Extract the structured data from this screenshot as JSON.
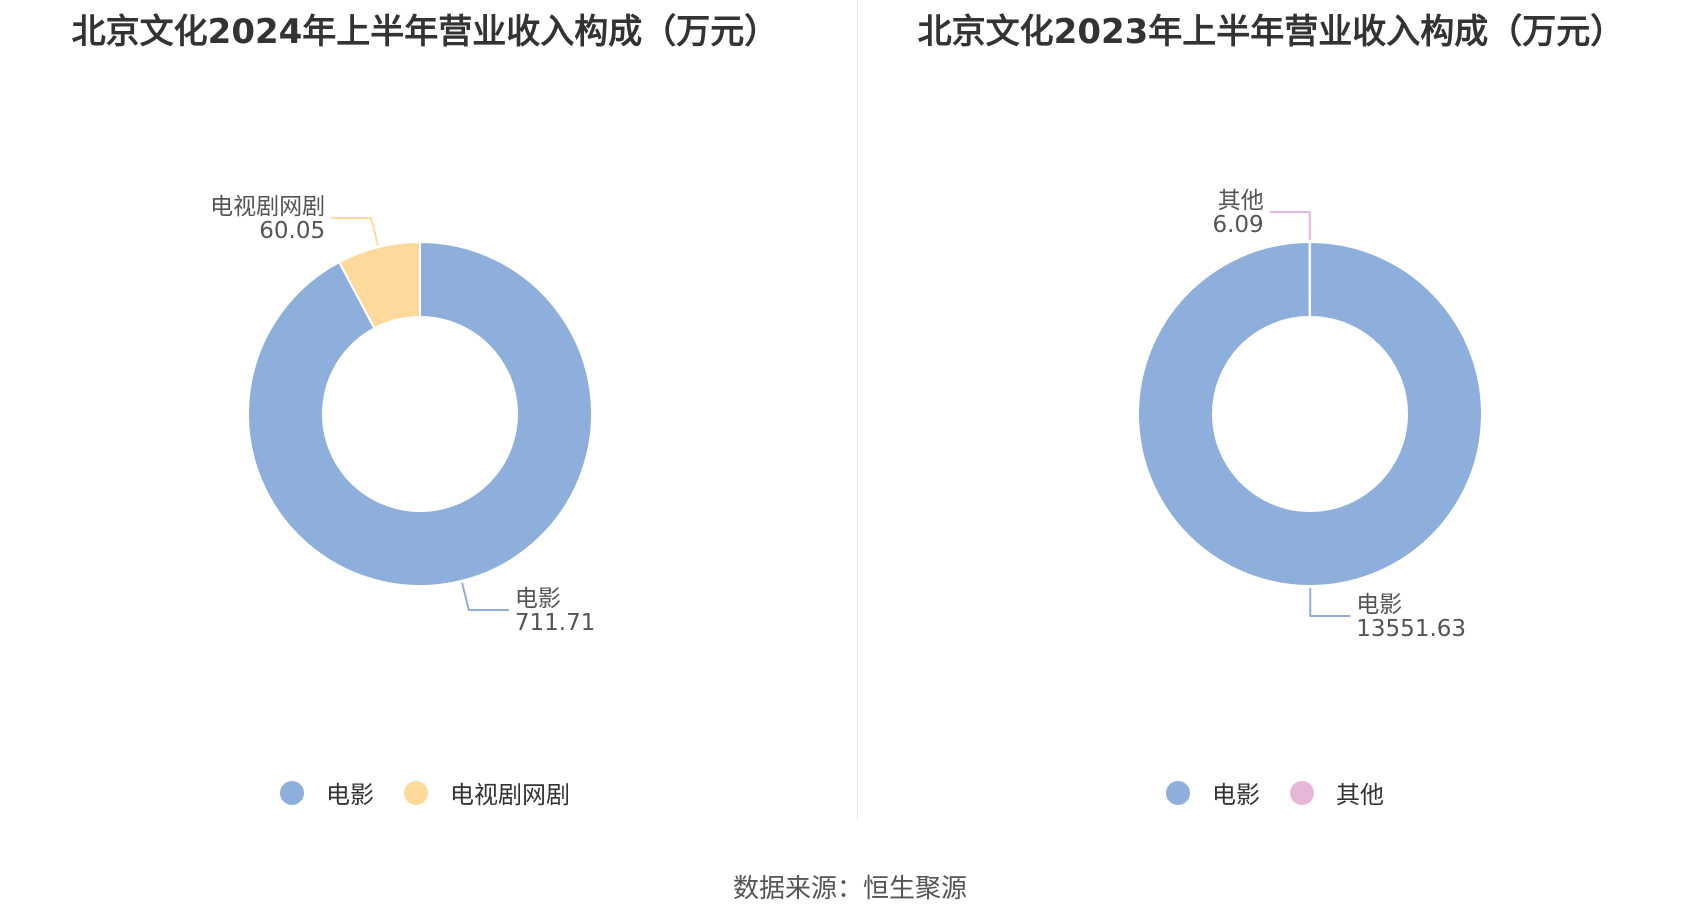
{
  "chart_data": [
    {
      "type": "pie",
      "title": "北京文化2024年上半年营业收入构成（万元）",
      "series": [
        {
          "name": "电影",
          "value": 711.71,
          "display": "711.71",
          "color": "#8eaedb"
        },
        {
          "name": "电视剧网剧",
          "value": 60.05,
          "display": "60.05",
          "color": "#fdd99b"
        }
      ],
      "legend": {
        "position": "bottom"
      }
    },
    {
      "type": "pie",
      "title": "北京文化2023年上半年营业收入构成（万元）",
      "series": [
        {
          "name": "电影",
          "value": 13551.63,
          "display": "13551.63",
          "color": "#8eaedb"
        },
        {
          "name": "其他",
          "value": 6.09,
          "display": "6.09",
          "color": "#e8b6d6"
        }
      ],
      "legend": {
        "position": "bottom"
      }
    }
  ],
  "source": "数据来源：恒生聚源"
}
